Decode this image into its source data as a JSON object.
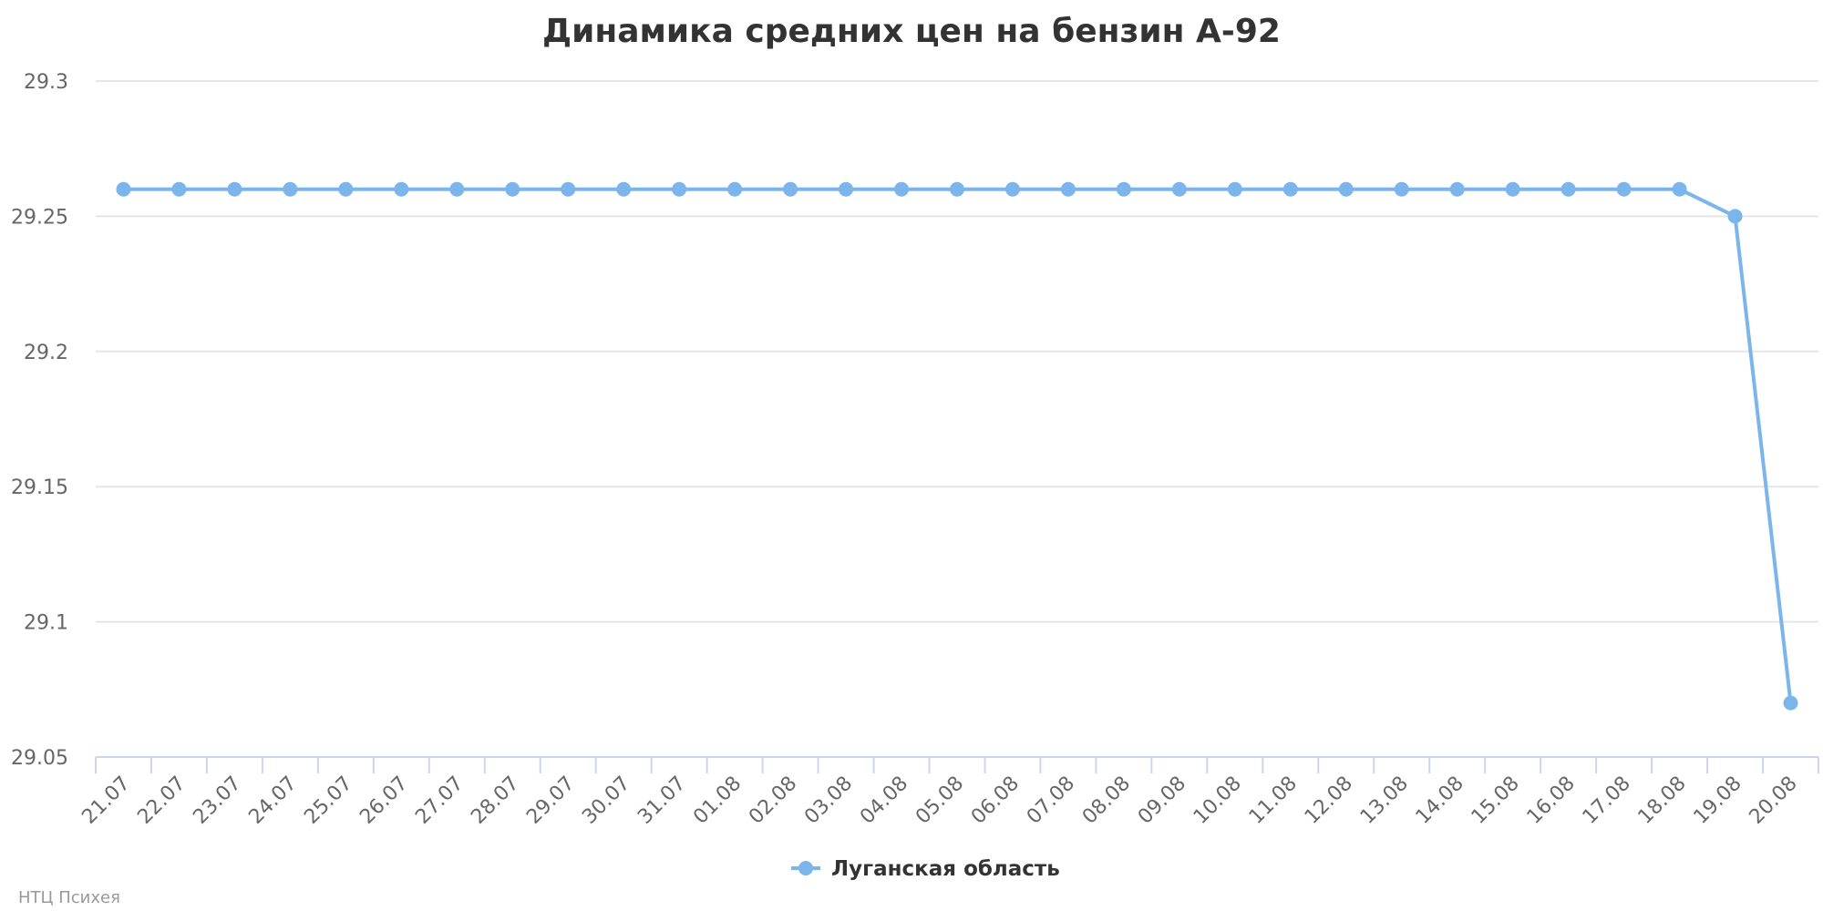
{
  "chart_data": {
    "type": "line",
    "title": "Динамика средних цен на бензин А-92",
    "xlabel": "",
    "ylabel": "",
    "categories": [
      "21.07",
      "22.07",
      "23.07",
      "24.07",
      "25.07",
      "26.07",
      "27.07",
      "28.07",
      "29.07",
      "30.07",
      "31.07",
      "01.08",
      "02.08",
      "03.08",
      "04.08",
      "05.08",
      "06.08",
      "07.08",
      "08.08",
      "09.08",
      "10.08",
      "11.08",
      "12.08",
      "13.08",
      "14.08",
      "15.08",
      "16.08",
      "17.08",
      "18.08",
      "19.08",
      "20.08"
    ],
    "series": [
      {
        "name": "Луганская область",
        "color": "#7cb5ec",
        "values": [
          29.26,
          29.26,
          29.26,
          29.26,
          29.26,
          29.26,
          29.26,
          29.26,
          29.26,
          29.26,
          29.26,
          29.26,
          29.26,
          29.26,
          29.26,
          29.26,
          29.26,
          29.26,
          29.26,
          29.26,
          29.26,
          29.26,
          29.26,
          29.26,
          29.26,
          29.26,
          29.26,
          29.26,
          29.26,
          29.25,
          29.07
        ]
      }
    ],
    "ylim": [
      29.05,
      29.3
    ],
    "yticks": [
      "29.05",
      "29.1",
      "29.15",
      "29.2",
      "29.25",
      "29.3"
    ],
    "grid": true,
    "legend_position": "bottom-center"
  },
  "credit": "НТЦ Психея"
}
